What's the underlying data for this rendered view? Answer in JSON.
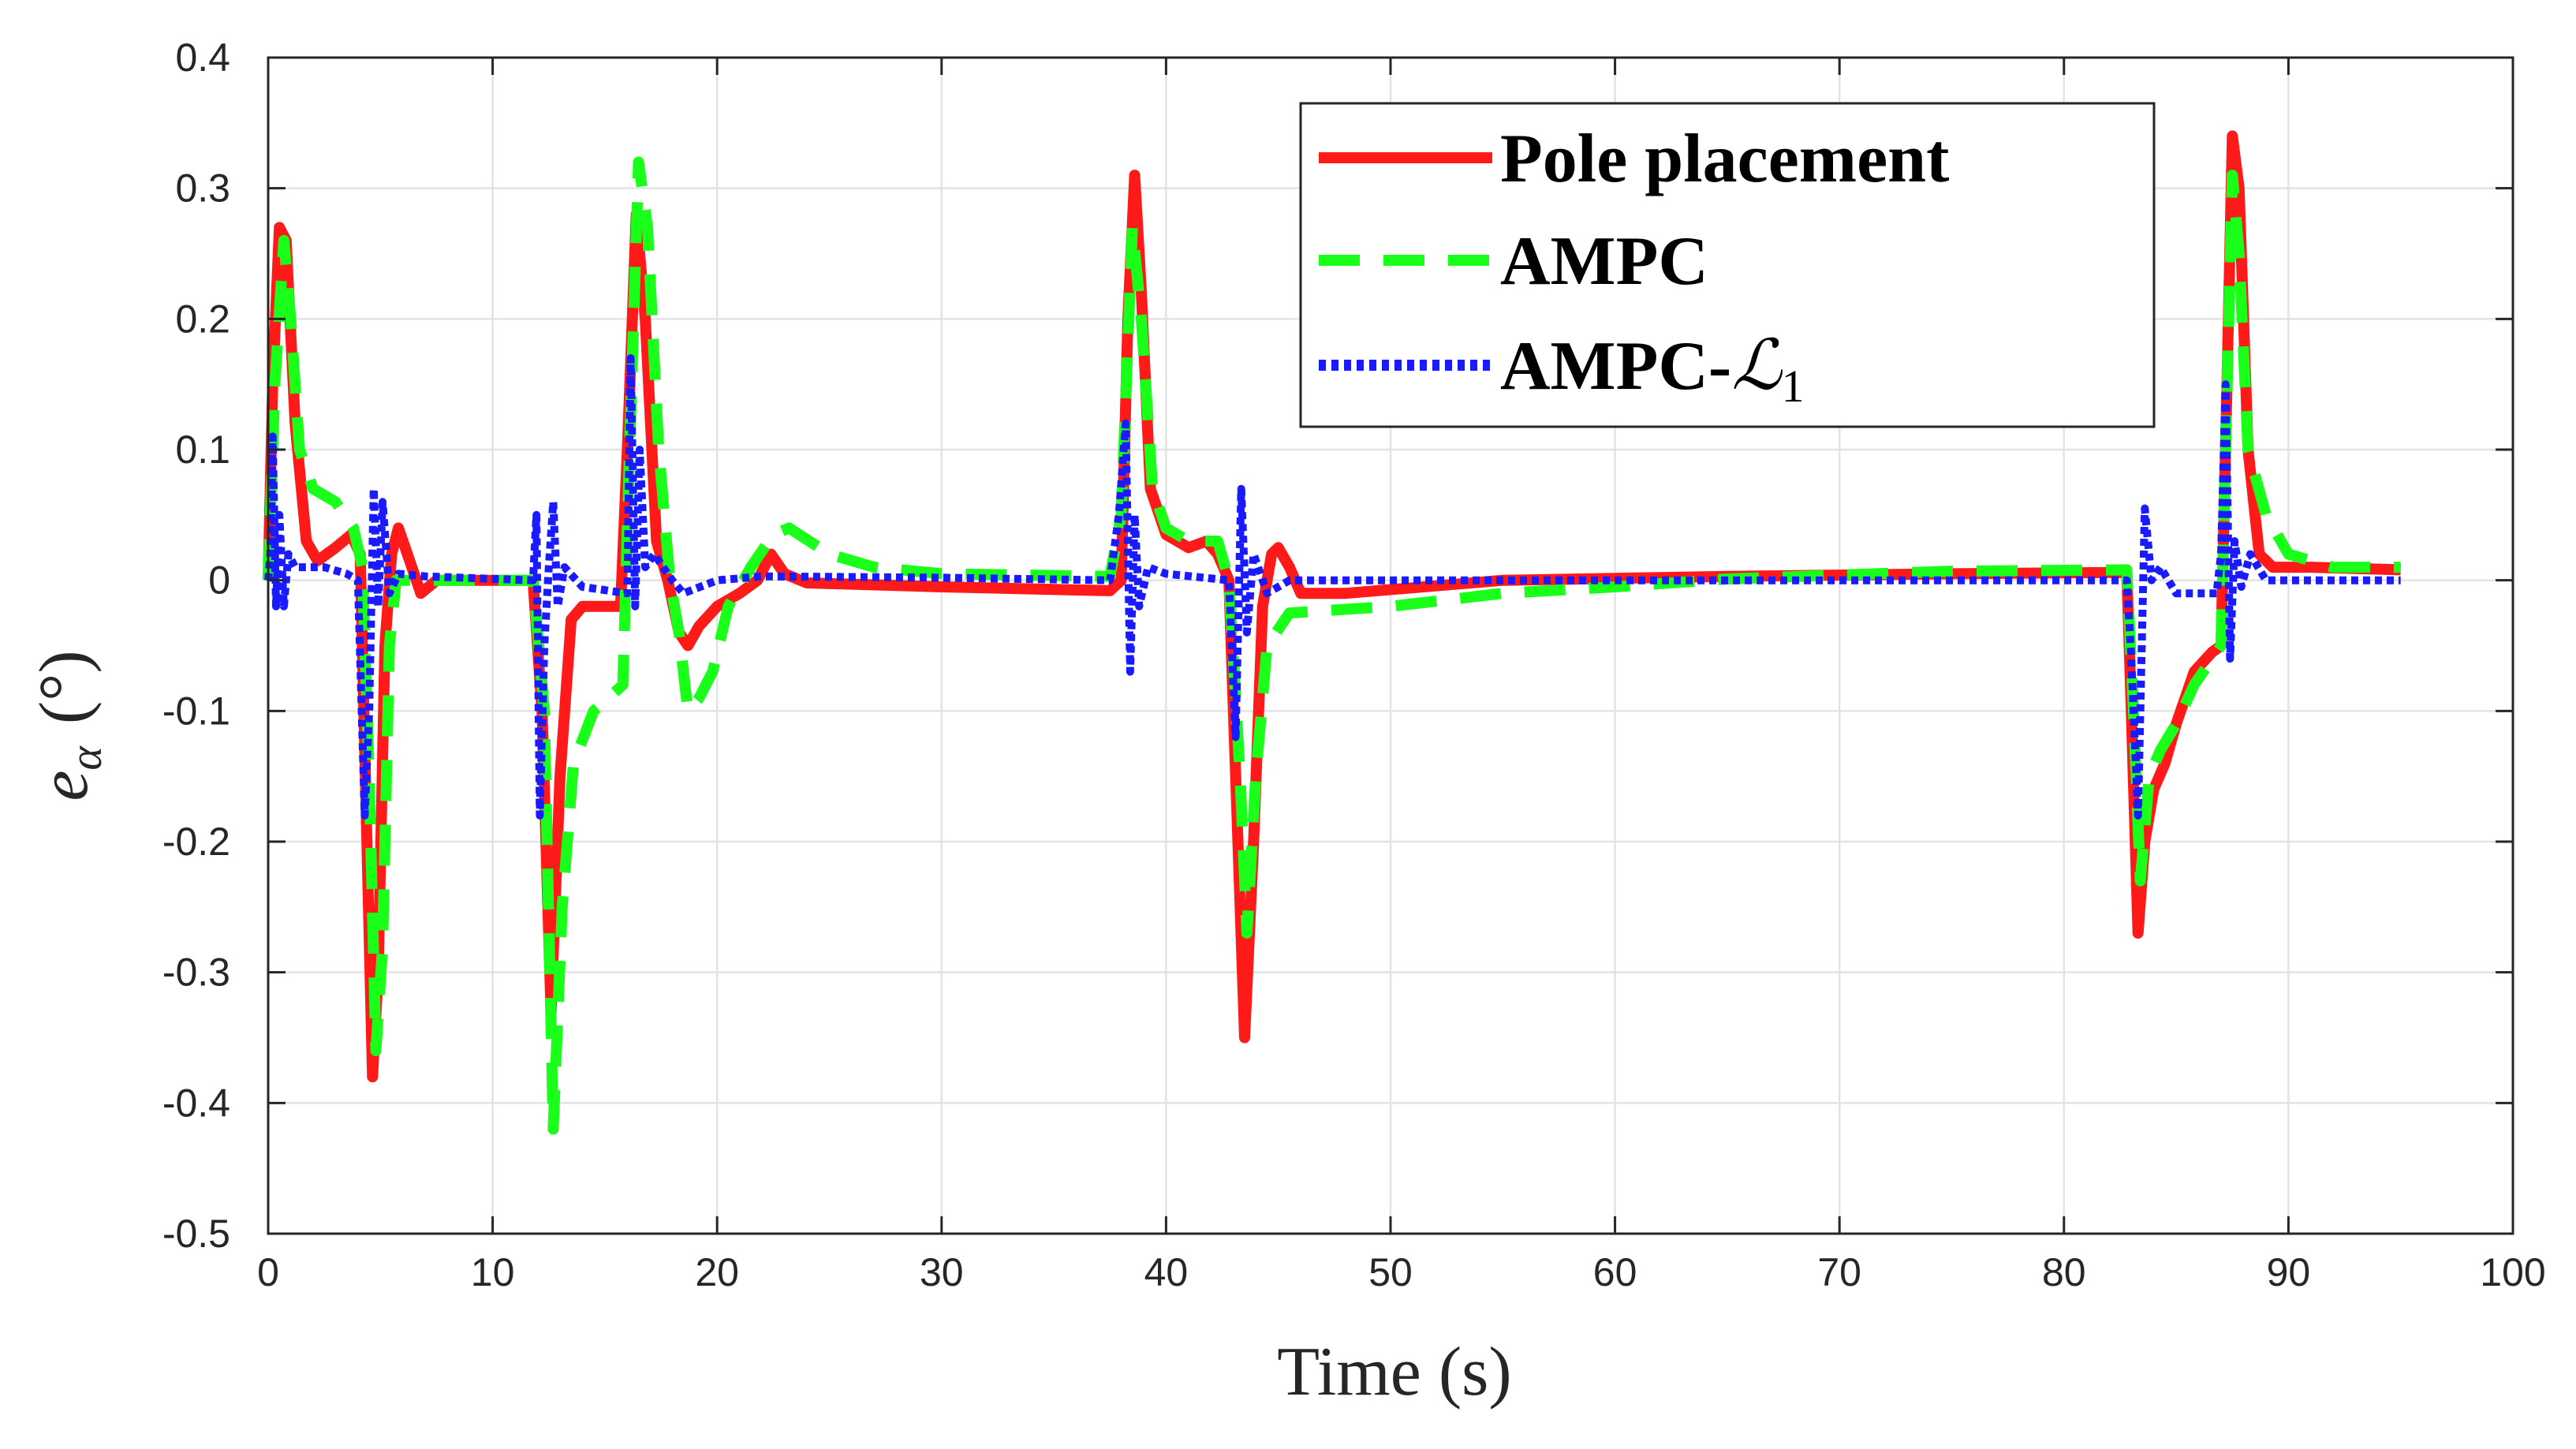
{
  "chart_data": {
    "type": "line",
    "title": "",
    "xlabel": "Time (s)",
    "ylabel_symbol": "e",
    "ylabel_subscript": "α",
    "ylabel_unit": "(°)",
    "xlim": [
      0,
      100
    ],
    "ylim": [
      -0.5,
      0.4
    ],
    "xticks": [
      0,
      10,
      20,
      30,
      40,
      50,
      60,
      70,
      80,
      90,
      100
    ],
    "xtick_labels": [
      "0",
      "10",
      "20",
      "30",
      "40",
      "50",
      "60",
      "70",
      "80",
      "90",
      "100"
    ],
    "yticks": [
      0.4,
      0.3,
      0.2,
      0.1,
      0,
      -0.1,
      -0.2,
      -0.3,
      -0.4,
      -0.5
    ],
    "ytick_labels": [
      "0.4",
      "0.3",
      "0.2",
      "0.1",
      "0",
      "-0.1",
      "-0.2",
      "-0.3",
      "-0.4",
      "-0.5"
    ],
    "grid": true,
    "legend_position": "top-right",
    "series": [
      {
        "name": "Pole placement",
        "legend_label": "Pole placement",
        "color": "#ff1a1a",
        "style": "solid",
        "points": [
          [
            0,
            0
          ],
          [
            0.2,
            0.15
          ],
          [
            0.5,
            0.27
          ],
          [
            0.8,
            0.26
          ],
          [
            1.2,
            0.12
          ],
          [
            1.7,
            0.03
          ],
          [
            2.2,
            0.015
          ],
          [
            3,
            0.025
          ],
          [
            3.7,
            0.035
          ],
          [
            4.1,
            0.02
          ],
          [
            4.4,
            -0.2
          ],
          [
            4.65,
            -0.38
          ],
          [
            4.9,
            -0.3
          ],
          [
            5.2,
            -0.05
          ],
          [
            5.5,
            0.02
          ],
          [
            5.8,
            0.04
          ],
          [
            6.2,
            0.02
          ],
          [
            6.8,
            -0.01
          ],
          [
            7.5,
            0
          ],
          [
            11.8,
            0
          ],
          [
            12.2,
            -0.1
          ],
          [
            12.6,
            -0.33
          ],
          [
            13,
            -0.15
          ],
          [
            13.5,
            -0.03
          ],
          [
            14,
            -0.02
          ],
          [
            15.7,
            -0.02
          ],
          [
            16,
            0.1
          ],
          [
            16.4,
            0.28
          ],
          [
            16.8,
            0.2
          ],
          [
            17.3,
            0.03
          ],
          [
            17.8,
            0
          ],
          [
            18.3,
            -0.04
          ],
          [
            18.7,
            -0.05
          ],
          [
            19.2,
            -0.035
          ],
          [
            20,
            -0.02
          ],
          [
            21,
            -0.01
          ],
          [
            21.8,
            0
          ],
          [
            22.4,
            0.02
          ],
          [
            23,
            0.005
          ],
          [
            24,
            -0.002
          ],
          [
            30,
            -0.005
          ],
          [
            37.5,
            -0.008
          ],
          [
            38,
            0
          ],
          [
            38.3,
            0.2
          ],
          [
            38.6,
            0.31
          ],
          [
            38.9,
            0.22
          ],
          [
            39.3,
            0.07
          ],
          [
            40,
            0.035
          ],
          [
            41,
            0.025
          ],
          [
            41.8,
            0.03
          ],
          [
            42.3,
            0.02
          ],
          [
            42.8,
            0
          ],
          [
            43.2,
            -0.2
          ],
          [
            43.5,
            -0.35
          ],
          [
            43.9,
            -0.2
          ],
          [
            44.3,
            -0.02
          ],
          [
            44.7,
            0.02
          ],
          [
            45,
            0.025
          ],
          [
            45.5,
            0.01
          ],
          [
            46,
            -0.01
          ],
          [
            48,
            -0.01
          ],
          [
            55,
            0
          ],
          [
            65,
            0.003
          ],
          [
            75,
            0.005
          ],
          [
            82.8,
            0.006
          ],
          [
            83,
            -0.1
          ],
          [
            83.3,
            -0.27
          ],
          [
            83.6,
            -0.2
          ],
          [
            84,
            -0.16
          ],
          [
            84.5,
            -0.14
          ],
          [
            85,
            -0.11
          ],
          [
            85.8,
            -0.07
          ],
          [
            86.6,
            -0.055
          ],
          [
            87,
            -0.05
          ],
          [
            87.2,
            0.1
          ],
          [
            87.5,
            0.34
          ],
          [
            87.8,
            0.3
          ],
          [
            88.2,
            0.1
          ],
          [
            88.7,
            0.02
          ],
          [
            89.3,
            0.01
          ],
          [
            91,
            0.01
          ],
          [
            95,
            0.008
          ]
        ]
      },
      {
        "name": "AMPC",
        "legend_label": "AMPC",
        "color": "#1aff1a",
        "style": "dashed",
        "points": [
          [
            0,
            0
          ],
          [
            0.3,
            0.15
          ],
          [
            0.7,
            0.26
          ],
          [
            1,
            0.2
          ],
          [
            1.4,
            0.1
          ],
          [
            2,
            0.07
          ],
          [
            3,
            0.06
          ],
          [
            3.8,
            0.04
          ],
          [
            4.2,
            0.01
          ],
          [
            4.5,
            -0.15
          ],
          [
            4.8,
            -0.36
          ],
          [
            5.1,
            -0.28
          ],
          [
            5.4,
            -0.05
          ],
          [
            5.7,
            0
          ],
          [
            7,
            0
          ],
          [
            11.8,
            0
          ],
          [
            12.3,
            -0.1
          ],
          [
            12.7,
            -0.42
          ],
          [
            13.1,
            -0.25
          ],
          [
            13.6,
            -0.14
          ],
          [
            14.5,
            -0.1
          ],
          [
            15.8,
            -0.08
          ],
          [
            16.1,
            0.1
          ],
          [
            16.5,
            0.32
          ],
          [
            16.9,
            0.27
          ],
          [
            17.4,
            0.1
          ],
          [
            17.9,
            0
          ],
          [
            18.3,
            -0.04
          ],
          [
            18.7,
            -0.1
          ],
          [
            19.2,
            -0.09
          ],
          [
            19.8,
            -0.07
          ],
          [
            20.5,
            -0.02
          ],
          [
            21.5,
            0.01
          ],
          [
            22.5,
            0.035
          ],
          [
            23.2,
            0.04
          ],
          [
            25,
            0.02
          ],
          [
            27,
            0.01
          ],
          [
            30,
            0.005
          ],
          [
            37.5,
            0.003
          ],
          [
            38,
            0.05
          ],
          [
            38.5,
            0.27
          ],
          [
            38.9,
            0.2
          ],
          [
            39.4,
            0.07
          ],
          [
            40,
            0.04
          ],
          [
            41,
            0.03
          ],
          [
            41.8,
            0.03
          ],
          [
            42.3,
            0.03
          ],
          [
            42.8,
            0
          ],
          [
            43.3,
            -0.15
          ],
          [
            43.6,
            -0.27
          ],
          [
            44,
            -0.15
          ],
          [
            44.5,
            -0.05
          ],
          [
            45.5,
            -0.025
          ],
          [
            50,
            -0.02
          ],
          [
            55,
            -0.01
          ],
          [
            60,
            -0.005
          ],
          [
            65,
            0.001
          ],
          [
            70,
            0.004
          ],
          [
            75,
            0.007
          ],
          [
            82.8,
            0.008
          ],
          [
            83.1,
            -0.1
          ],
          [
            83.4,
            -0.23
          ],
          [
            83.8,
            -0.15
          ],
          [
            84.3,
            -0.13
          ],
          [
            85,
            -0.11
          ],
          [
            85.8,
            -0.08
          ],
          [
            86.6,
            -0.06
          ],
          [
            87,
            -0.05
          ],
          [
            87.2,
            0.1
          ],
          [
            87.5,
            0.31
          ],
          [
            87.8,
            0.25
          ],
          [
            88.2,
            0.1
          ],
          [
            89,
            0.05
          ],
          [
            90,
            0.02
          ],
          [
            92,
            0.01
          ],
          [
            95,
            0.01
          ]
        ]
      },
      {
        "name": "AMPC-L1",
        "legend_label": "AMPC-",
        "legend_symbol": "ℒ",
        "legend_subscript": "1",
        "color": "#1a1aff",
        "style": "dotted",
        "points": [
          [
            0,
            0
          ],
          [
            0.1,
            0.02
          ],
          [
            0.2,
            0.11
          ],
          [
            0.35,
            -0.02
          ],
          [
            0.5,
            0.05
          ],
          [
            0.7,
            -0.02
          ],
          [
            0.9,
            0.02
          ],
          [
            1.2,
            0.01
          ],
          [
            2.5,
            0.01
          ],
          [
            3.5,
            0.005
          ],
          [
            4,
            0
          ],
          [
            4.3,
            -0.18
          ],
          [
            4.5,
            -0.1
          ],
          [
            4.7,
            0.07
          ],
          [
            4.9,
            -0.02
          ],
          [
            5.1,
            0.06
          ],
          [
            5.4,
            -0.01
          ],
          [
            5.8,
            0.005
          ],
          [
            7,
            0.003
          ],
          [
            11.8,
            0
          ],
          [
            11.95,
            0.05
          ],
          [
            12.1,
            -0.18
          ],
          [
            12.3,
            -0.05
          ],
          [
            12.5,
            0.01
          ],
          [
            12.7,
            0.06
          ],
          [
            12.9,
            -0.02
          ],
          [
            13.2,
            0.01
          ],
          [
            14,
            -0.005
          ],
          [
            16,
            -0.01
          ],
          [
            16.15,
            0.17
          ],
          [
            16.35,
            -0.02
          ],
          [
            16.55,
            0.1
          ],
          [
            16.8,
            0.01
          ],
          [
            17.2,
            0.02
          ],
          [
            18,
            0
          ],
          [
            18.5,
            -0.01
          ],
          [
            20,
            0
          ],
          [
            22,
            0.003
          ],
          [
            30,
            0.002
          ],
          [
            37.5,
            0
          ],
          [
            37.9,
            0.05
          ],
          [
            38.2,
            0.12
          ],
          [
            38.4,
            -0.07
          ],
          [
            38.6,
            0.05
          ],
          [
            38.8,
            -0.02
          ],
          [
            39.2,
            0.01
          ],
          [
            40,
            0.005
          ],
          [
            42.8,
            0
          ],
          [
            43.1,
            -0.12
          ],
          [
            43.35,
            0.07
          ],
          [
            43.6,
            -0.04
          ],
          [
            43.9,
            0.02
          ],
          [
            44.5,
            -0.01
          ],
          [
            45.5,
            0
          ],
          [
            50,
            0
          ],
          [
            70,
            0
          ],
          [
            82.8,
            0
          ],
          [
            83,
            -0.06
          ],
          [
            83.3,
            -0.18
          ],
          [
            83.6,
            0.055
          ],
          [
            83.9,
            0
          ],
          [
            84.3,
            0.01
          ],
          [
            85,
            -0.01
          ],
          [
            86,
            -0.01
          ],
          [
            86.8,
            -0.01
          ],
          [
            87,
            0.02
          ],
          [
            87.2,
            0.15
          ],
          [
            87.4,
            -0.06
          ],
          [
            87.6,
            0.03
          ],
          [
            87.9,
            -0.005
          ],
          [
            88.3,
            0.02
          ],
          [
            89,
            0
          ],
          [
            95,
            0
          ]
        ]
      }
    ]
  }
}
